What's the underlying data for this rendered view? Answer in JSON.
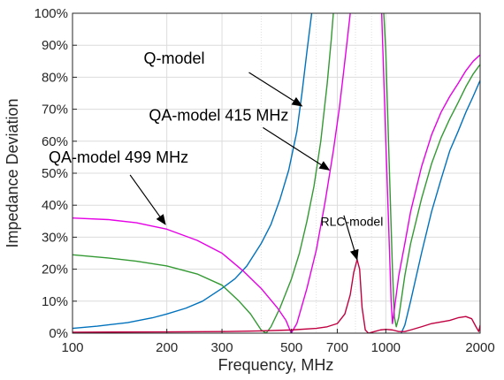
{
  "chart_data": {
    "type": "line",
    "title": "",
    "xlabel": "Frequency, MHz",
    "ylabel": "Impedance Deviation",
    "xscale": "log",
    "xlim": [
      100,
      2000
    ],
    "ylim": [
      0,
      100
    ],
    "grid": true,
    "x_ticks": [
      100,
      200,
      300,
      500,
      700,
      1000,
      2000
    ],
    "x_tick_labels": [
      "100",
      "200",
      "300",
      "500",
      "700",
      "1000",
      "2000"
    ],
    "y_ticks": [
      0,
      10,
      20,
      30,
      40,
      50,
      60,
      70,
      80,
      90,
      100
    ],
    "y_tick_labels": [
      "0%",
      "10%",
      "20%",
      "30%",
      "40%",
      "50%",
      "60%",
      "70%",
      "80%",
      "90%",
      "100%"
    ],
    "series": [
      {
        "name": "Q-model",
        "color": "#0072BD",
        "points": [
          [
            100,
            1.5
          ],
          [
            120,
            2.2
          ],
          [
            150,
            3.3
          ],
          [
            180,
            4.8
          ],
          [
            200,
            6
          ],
          [
            230,
            7.8
          ],
          [
            260,
            10
          ],
          [
            300,
            14
          ],
          [
            330,
            17
          ],
          [
            360,
            21
          ],
          [
            400,
            28
          ],
          [
            430,
            34
          ],
          [
            460,
            42
          ],
          [
            490,
            51
          ],
          [
            520,
            63
          ],
          [
            540,
            75
          ],
          [
            560,
            88
          ],
          [
            580,
            100
          ],
          [
            1120,
            0
          ],
          [
            1150,
            2.5
          ],
          [
            1200,
            10
          ],
          [
            1300,
            25
          ],
          [
            1400,
            38
          ],
          [
            1500,
            48
          ],
          [
            1600,
            57
          ],
          [
            1700,
            63
          ],
          [
            1800,
            69
          ],
          [
            1900,
            74
          ],
          [
            2000,
            79
          ]
        ]
      },
      {
        "name": "QA-model 415 MHz",
        "color": "#339933",
        "points": [
          [
            100,
            24.5
          ],
          [
            130,
            23.5
          ],
          [
            160,
            22.5
          ],
          [
            200,
            21
          ],
          [
            250,
            18.5
          ],
          [
            300,
            15
          ],
          [
            340,
            10
          ],
          [
            370,
            6
          ],
          [
            400,
            1
          ],
          [
            415,
            0
          ],
          [
            430,
            2
          ],
          [
            460,
            8
          ],
          [
            500,
            17
          ],
          [
            530,
            25
          ],
          [
            560,
            35
          ],
          [
            590,
            46
          ],
          [
            620,
            60
          ],
          [
            650,
            78
          ],
          [
            670,
            92
          ],
          [
            680,
            100
          ],
          [
            985,
            100
          ],
          [
            1000,
            88
          ],
          [
            1020,
            60
          ],
          [
            1050,
            20
          ],
          [
            1065,
            5
          ],
          [
            1080,
            2
          ],
          [
            1100,
            5
          ],
          [
            1150,
            18
          ],
          [
            1200,
            28
          ],
          [
            1300,
            42
          ],
          [
            1400,
            53
          ],
          [
            1500,
            61
          ],
          [
            1600,
            67
          ],
          [
            1700,
            72
          ],
          [
            1800,
            77
          ],
          [
            1900,
            81
          ],
          [
            2000,
            84
          ]
        ]
      },
      {
        "name": "QA-model 499 MHz",
        "color": "#E600E6",
        "points": [
          [
            100,
            36
          ],
          [
            130,
            35.5
          ],
          [
            160,
            34.5
          ],
          [
            200,
            32.5
          ],
          [
            250,
            29
          ],
          [
            300,
            25
          ],
          [
            350,
            19.5
          ],
          [
            400,
            14
          ],
          [
            450,
            8
          ],
          [
            480,
            4
          ],
          [
            499,
            0
          ],
          [
            520,
            3
          ],
          [
            560,
            14
          ],
          [
            600,
            26
          ],
          [
            640,
            41
          ],
          [
            680,
            57
          ],
          [
            710,
            70
          ],
          [
            730,
            80
          ],
          [
            750,
            90
          ],
          [
            770,
            100
          ],
          [
            970,
            100
          ],
          [
            985,
            80
          ],
          [
            1000,
            60
          ],
          [
            1020,
            35
          ],
          [
            1040,
            10
          ],
          [
            1050,
            3
          ],
          [
            1060,
            6
          ],
          [
            1100,
            18
          ],
          [
            1150,
            28
          ],
          [
            1200,
            38
          ],
          [
            1300,
            52
          ],
          [
            1400,
            62
          ],
          [
            1500,
            69
          ],
          [
            1600,
            74
          ],
          [
            1700,
            78
          ],
          [
            1800,
            82
          ],
          [
            1900,
            85
          ],
          [
            2000,
            87
          ]
        ]
      },
      {
        "name": "RLC-model",
        "color": "#C00040",
        "points": [
          [
            100,
            0.3
          ],
          [
            200,
            0.4
          ],
          [
            300,
            0.5
          ],
          [
            400,
            0.7
          ],
          [
            500,
            1
          ],
          [
            600,
            1.5
          ],
          [
            650,
            2
          ],
          [
            700,
            3
          ],
          [
            740,
            6
          ],
          [
            770,
            12
          ],
          [
            790,
            19
          ],
          [
            810,
            23
          ],
          [
            825,
            20
          ],
          [
            840,
            8
          ],
          [
            860,
            1
          ],
          [
            880,
            0
          ],
          [
            920,
            0.5
          ],
          [
            960,
            1
          ],
          [
            1000,
            1.2
          ],
          [
            1050,
            1
          ],
          [
            1100,
            0.5
          ],
          [
            1150,
            0.5
          ],
          [
            1200,
            1
          ],
          [
            1300,
            2
          ],
          [
            1400,
            3
          ],
          [
            1500,
            3.5
          ],
          [
            1600,
            4
          ],
          [
            1700,
            4.8
          ],
          [
            1800,
            5.2
          ],
          [
            1880,
            4.5
          ],
          [
            1940,
            2
          ],
          [
            1980,
            0.5
          ],
          [
            2000,
            2.5
          ]
        ]
      }
    ],
    "annotations": [
      {
        "text": "Q-model",
        "target": [
          540,
          71
        ],
        "font_size": 18
      },
      {
        "text": "QA-model 415 MHz",
        "target": [
          660,
          51
        ],
        "font_size": 18
      },
      {
        "text": "QA-model 499 MHz",
        "target": [
          198,
          34
        ],
        "font_size": 18
      },
      {
        "text": "RLC-model",
        "target": [
          810,
          23
        ],
        "font_size": 14
      }
    ]
  }
}
